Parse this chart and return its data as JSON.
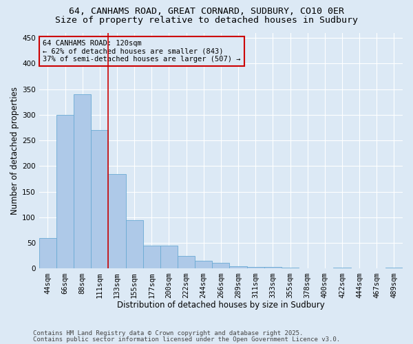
{
  "title_line1": "64, CANHAMS ROAD, GREAT CORNARD, SUDBURY, CO10 0ER",
  "title_line2": "Size of property relative to detached houses in Sudbury",
  "xlabel": "Distribution of detached houses by size in Sudbury",
  "ylabel": "Number of detached properties",
  "annotation_title": "64 CANHAMS ROAD: 120sqm",
  "annotation_line2": "← 62% of detached houses are smaller (843)",
  "annotation_line3": "37% of semi-detached houses are larger (507) →",
  "bar_color": "#aec9e8",
  "bar_edge_color": "#6aaad4",
  "vline_color": "#cc0000",
  "annotation_box_color": "#cc0000",
  "background_color": "#dce9f5",
  "grid_color": "#ffffff",
  "categories": [
    "44sqm",
    "66sqm",
    "88sqm",
    "111sqm",
    "133sqm",
    "155sqm",
    "177sqm",
    "200sqm",
    "222sqm",
    "244sqm",
    "266sqm",
    "289sqm",
    "311sqm",
    "333sqm",
    "355sqm",
    "378sqm",
    "400sqm",
    "422sqm",
    "444sqm",
    "467sqm",
    "489sqm"
  ],
  "values": [
    60,
    300,
    340,
    270,
    185,
    95,
    45,
    45,
    25,
    15,
    12,
    5,
    3,
    3,
    2,
    0,
    0,
    2,
    0,
    0,
    2
  ],
  "vline_x": 3.5,
  "ylim": [
    0,
    460
  ],
  "yticks": [
    0,
    50,
    100,
    150,
    200,
    250,
    300,
    350,
    400,
    450
  ],
  "footer_line1": "Contains HM Land Registry data © Crown copyright and database right 2025.",
  "footer_line2": "Contains public sector information licensed under the Open Government Licence v3.0.",
  "title_fontsize": 9.5,
  "subtitle_fontsize": 9.5,
  "axis_label_fontsize": 8.5,
  "tick_fontsize": 7.5,
  "annotation_fontsize": 7.5,
  "footer_fontsize": 6.5
}
